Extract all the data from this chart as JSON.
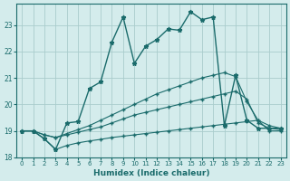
{
  "xlabel": "Humidex (Indice chaleur)",
  "bg_color": "#d4ecec",
  "grid_color": "#aacccc",
  "line_color": "#1a6b6b",
  "xlim": [
    -0.5,
    23.5
  ],
  "ylim": [
    18.0,
    23.8
  ],
  "xticks": [
    0,
    1,
    2,
    3,
    4,
    5,
    6,
    7,
    8,
    9,
    10,
    11,
    12,
    13,
    14,
    15,
    16,
    17,
    18,
    19,
    20,
    21,
    22,
    23
  ],
  "yticks": [
    18,
    19,
    20,
    21,
    22,
    23
  ],
  "line_jagged_x": [
    0,
    1,
    2,
    3,
    4,
    5,
    6,
    7,
    8,
    9,
    10,
    11,
    12,
    13,
    14,
    15,
    16,
    17,
    18,
    19,
    20,
    21,
    22,
    23
  ],
  "line_jagged_y": [
    19.0,
    19.0,
    18.7,
    18.3,
    19.3,
    19.35,
    20.6,
    20.85,
    22.35,
    23.3,
    21.55,
    22.2,
    22.45,
    22.85,
    22.8,
    23.5,
    23.2,
    23.3,
    19.2,
    21.1,
    19.4,
    19.1,
    19.1,
    19.1
  ],
  "line_upper_diag_x": [
    0,
    1,
    2,
    3,
    4,
    5,
    6,
    7,
    8,
    9,
    10,
    11,
    12,
    13,
    14,
    15,
    16,
    17,
    18,
    19,
    20,
    21,
    22,
    23
  ],
  "line_upper_diag_y": [
    19.0,
    19.0,
    18.85,
    18.75,
    18.9,
    19.05,
    19.2,
    19.4,
    19.6,
    19.8,
    20.0,
    20.2,
    20.4,
    20.55,
    20.7,
    20.85,
    21.0,
    21.1,
    21.2,
    21.05,
    20.1,
    19.4,
    19.2,
    19.1
  ],
  "line_mid_diag_x": [
    0,
    1,
    2,
    3,
    4,
    5,
    6,
    7,
    8,
    9,
    10,
    11,
    12,
    13,
    14,
    15,
    16,
    17,
    18,
    19,
    20,
    21,
    22,
    23
  ],
  "line_mid_diag_y": [
    19.0,
    19.0,
    18.85,
    18.75,
    18.85,
    18.95,
    19.05,
    19.15,
    19.3,
    19.45,
    19.6,
    19.7,
    19.8,
    19.9,
    20.0,
    20.1,
    20.2,
    20.3,
    20.4,
    20.5,
    20.2,
    19.3,
    19.1,
    19.05
  ],
  "line_bottom_x": [
    0,
    1,
    2,
    3,
    4,
    5,
    6,
    7,
    8,
    9,
    10,
    11,
    12,
    13,
    14,
    15,
    16,
    17,
    18,
    19,
    20,
    21,
    22,
    23
  ],
  "line_bottom_y": [
    19.0,
    19.0,
    18.7,
    18.3,
    18.45,
    18.55,
    18.62,
    18.68,
    18.75,
    18.8,
    18.85,
    18.9,
    18.95,
    19.0,
    19.05,
    19.1,
    19.15,
    19.2,
    19.25,
    19.3,
    19.35,
    19.4,
    19.0,
    19.0
  ]
}
